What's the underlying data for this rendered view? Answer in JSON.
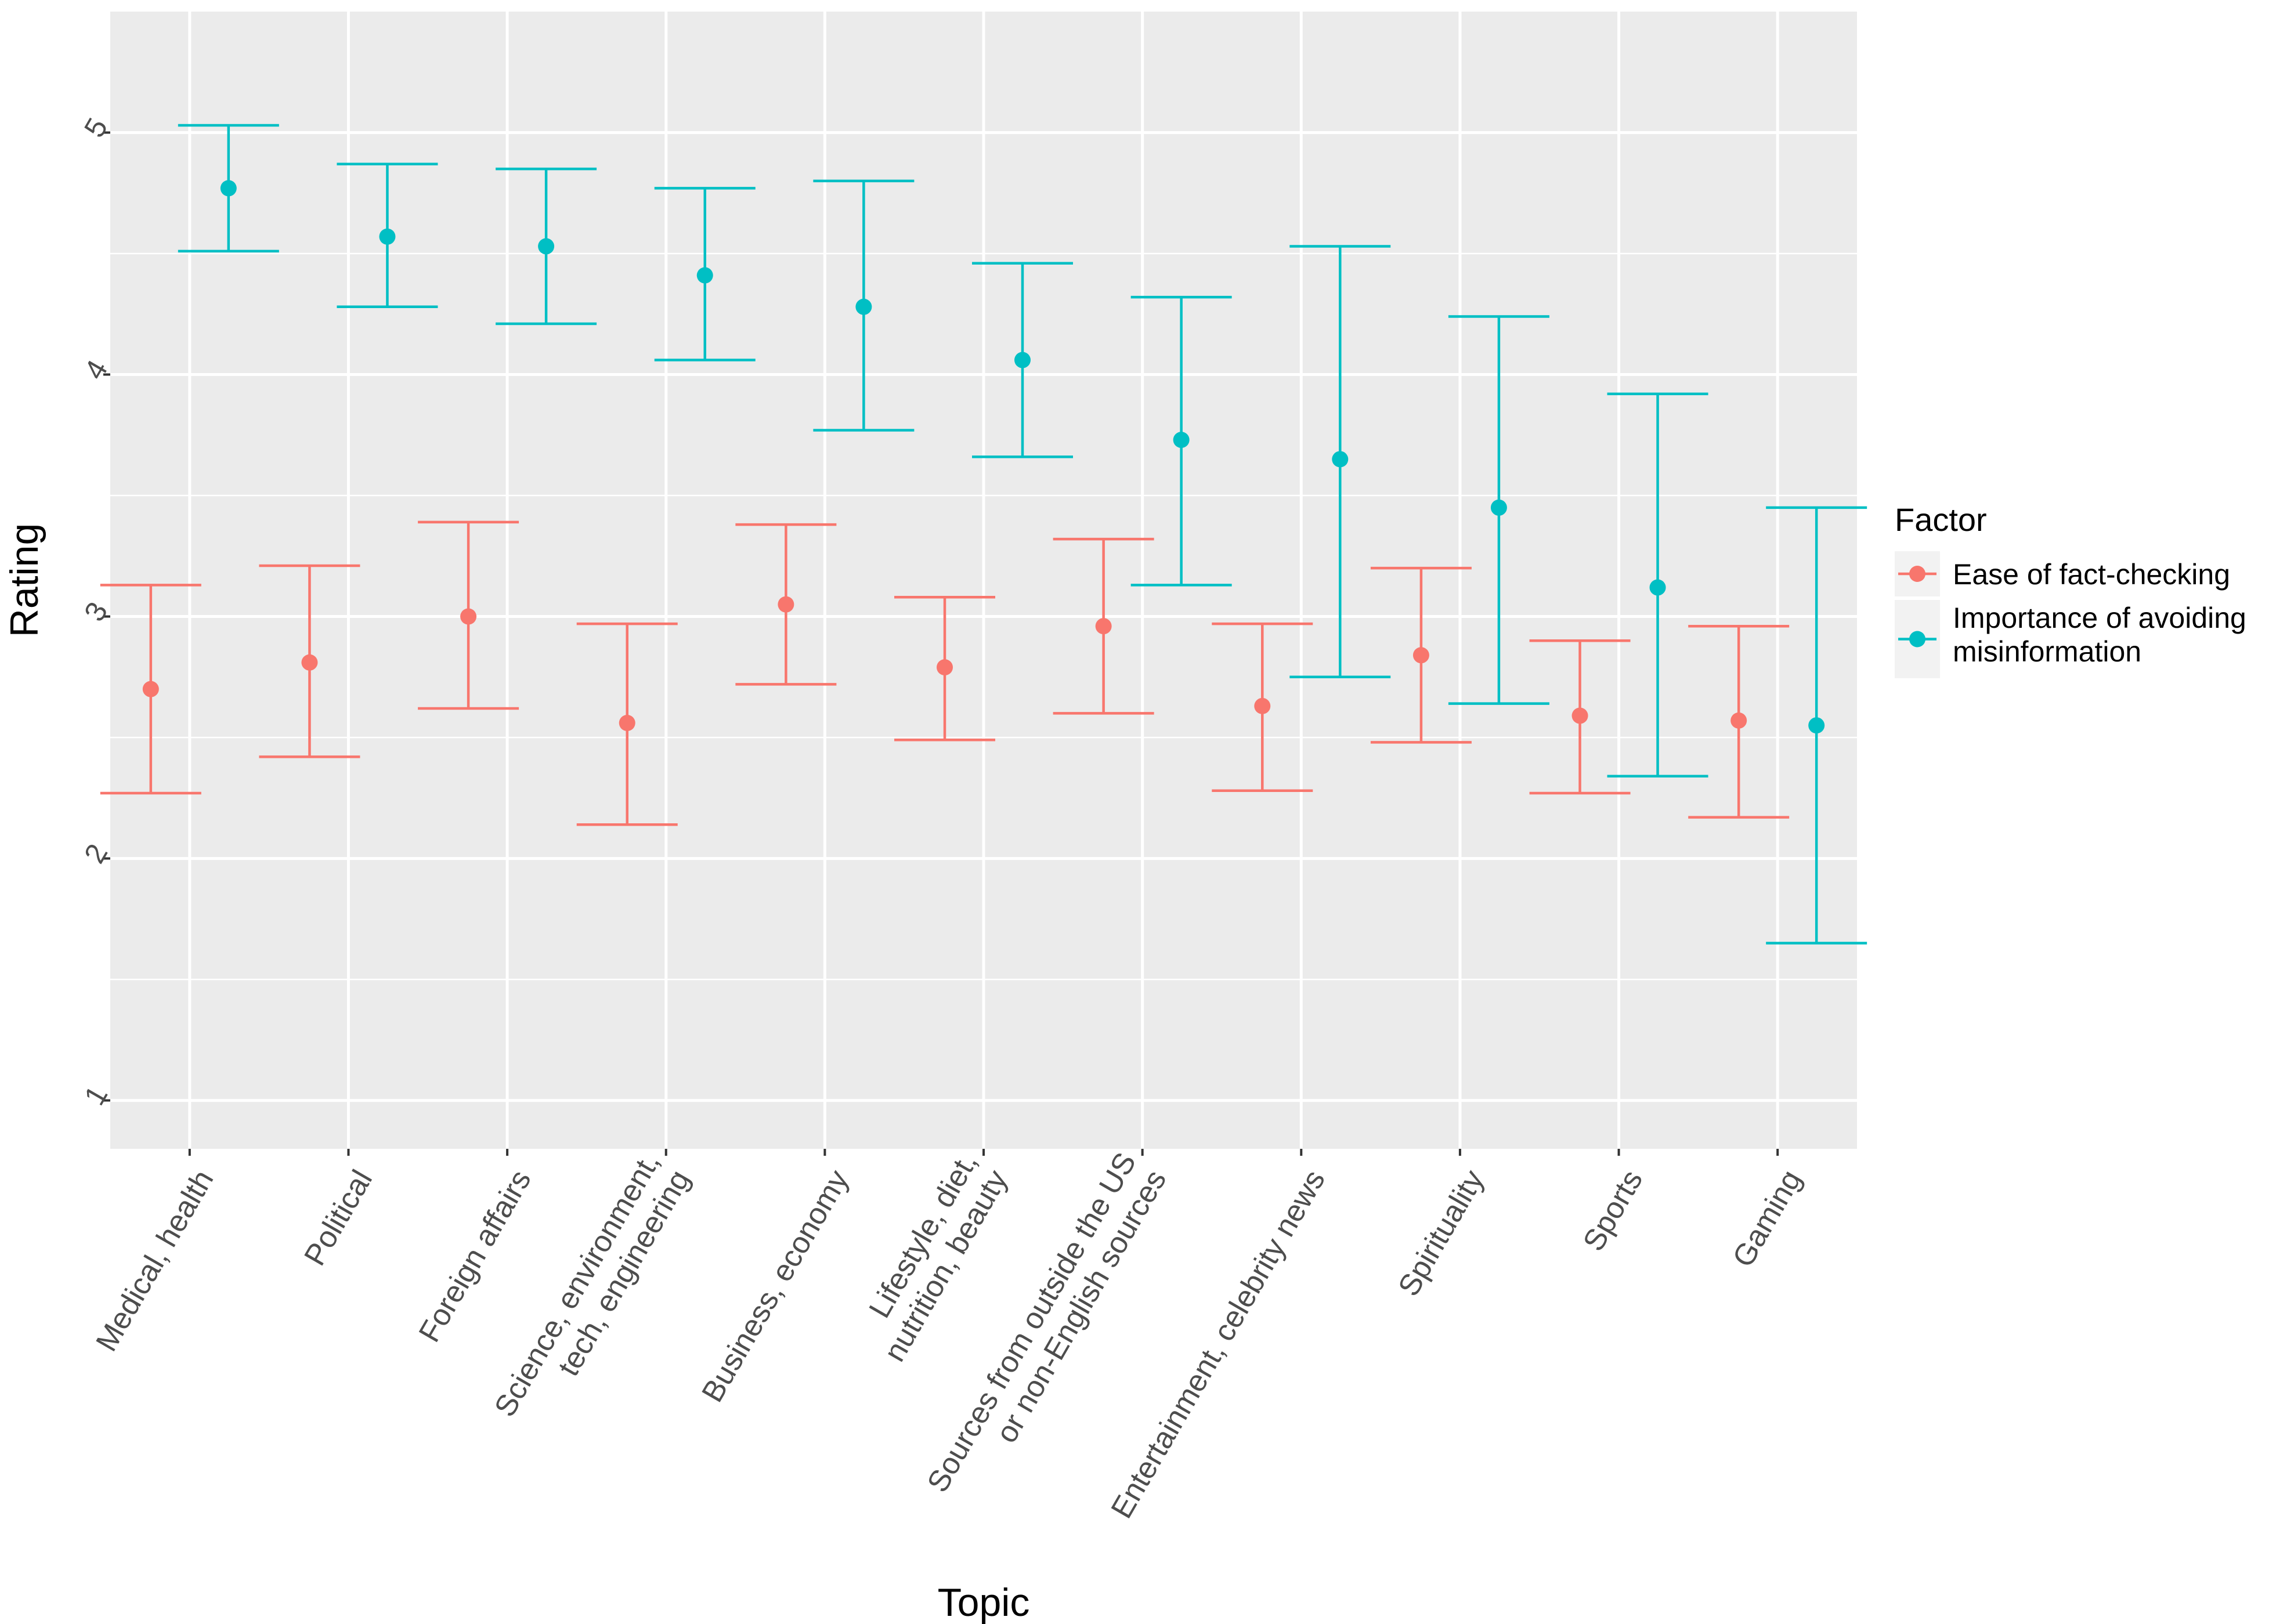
{
  "chart_data": {
    "type": "errorbar",
    "title": "",
    "xlabel": "Topic",
    "ylabel": "Rating",
    "ylim": [
      0.8,
      5.5
    ],
    "yticks": [
      1,
      2,
      3,
      4,
      5
    ],
    "grid": true,
    "legend": {
      "title": "Factor",
      "position": "right"
    },
    "categories": [
      "Medical, health",
      "Political",
      "Foreign affairs",
      "Science, environment,\ntech, engineering",
      "Business, economy",
      "Lifestyle, diet,\nnutrition, beauty",
      "Sources from outside the US\nor non-English sources",
      "Entertainment, celebrity news",
      "Spirituality",
      "Sports",
      "Gaming"
    ],
    "series": [
      {
        "name": "Ease of fact-checking",
        "color": "#F8766D",
        "values": [
          2.7,
          2.81,
          3.0,
          2.56,
          3.05,
          2.79,
          2.96,
          2.63,
          2.84,
          2.59,
          2.57
        ],
        "lower": [
          2.27,
          2.42,
          2.62,
          2.14,
          2.72,
          2.49,
          2.6,
          2.28,
          2.48,
          2.27,
          2.17
        ],
        "upper": [
          3.13,
          3.21,
          3.39,
          2.97,
          3.38,
          3.08,
          3.32,
          2.97,
          3.2,
          2.9,
          2.96
        ]
      },
      {
        "name": "Importance of avoiding\nmisinformation",
        "color": "#00BFC4",
        "values": [
          4.77,
          4.57,
          4.53,
          4.41,
          4.28,
          4.06,
          3.73,
          3.65,
          3.45,
          3.12,
          2.55
        ],
        "lower": [
          4.51,
          4.28,
          4.21,
          4.06,
          3.77,
          3.66,
          3.13,
          2.75,
          2.64,
          2.34,
          1.65
        ],
        "upper": [
          5.03,
          4.87,
          4.85,
          4.77,
          4.8,
          4.46,
          4.32,
          4.53,
          4.24,
          3.92,
          3.45
        ]
      }
    ]
  }
}
